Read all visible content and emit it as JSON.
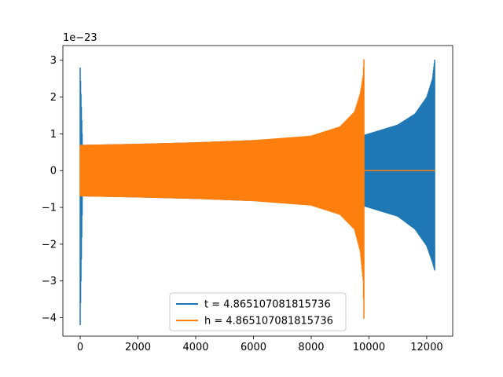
{
  "chart_data": {
    "type": "line",
    "title": "",
    "xlabel": "",
    "ylabel": "",
    "y_offset_label": "1e−23",
    "xlim": [
      -600,
      12900
    ],
    "ylim": [
      -4.5,
      3.4
    ],
    "x_ticks": [
      0,
      2000,
      4000,
      6000,
      8000,
      10000,
      12000
    ],
    "x_tick_labels": [
      "0",
      "2000",
      "4000",
      "6000",
      "8000",
      "10000",
      "12000"
    ],
    "y_ticks": [
      -4,
      -3,
      -2,
      -1,
      0,
      1,
      2,
      3
    ],
    "y_tick_labels": [
      "−4",
      "−3",
      "−2",
      "−1",
      "0",
      "1",
      "2",
      "3"
    ],
    "grid": false,
    "legend_position": "bottom-center",
    "series": [
      {
        "name": "t = 4.865107081815736",
        "color": "#1f77b4",
        "end": 12288,
        "envelope": [
          {
            "x": 0,
            "upper": 2.8,
            "lower": -4.2
          },
          {
            "x": 80,
            "upper": 0.7,
            "lower": -0.7
          },
          {
            "x": 2000,
            "upper": 0.73,
            "lower": -0.73
          },
          {
            "x": 4000,
            "upper": 0.77,
            "lower": -0.77
          },
          {
            "x": 6000,
            "upper": 0.83,
            "lower": -0.83
          },
          {
            "x": 8000,
            "upper": 0.92,
            "lower": -0.92
          },
          {
            "x": 9830,
            "upper": 0.97,
            "lower": -0.97
          },
          {
            "x": 11000,
            "upper": 1.25,
            "lower": -1.25
          },
          {
            "x": 11600,
            "upper": 1.55,
            "lower": -1.6
          },
          {
            "x": 12000,
            "upper": 2.0,
            "lower": -2.05
          },
          {
            "x": 12200,
            "upper": 2.5,
            "lower": -2.5
          },
          {
            "x": 12288,
            "upper": 3.1,
            "lower": -2.75
          }
        ]
      },
      {
        "name": "h = 4.865107081815736",
        "color": "#ff7f0e",
        "end": 9830,
        "flat_until": 12288,
        "envelope": [
          {
            "x": 0,
            "upper": 0.7,
            "lower": -0.7
          },
          {
            "x": 2000,
            "upper": 0.73,
            "lower": -0.73
          },
          {
            "x": 4000,
            "upper": 0.77,
            "lower": -0.77
          },
          {
            "x": 6000,
            "upper": 0.83,
            "lower": -0.83
          },
          {
            "x": 8000,
            "upper": 0.95,
            "lower": -0.95
          },
          {
            "x": 9000,
            "upper": 1.2,
            "lower": -1.2
          },
          {
            "x": 9500,
            "upper": 1.6,
            "lower": -1.6
          },
          {
            "x": 9700,
            "upper": 2.1,
            "lower": -2.2
          },
          {
            "x": 9800,
            "upper": 2.6,
            "lower": -3.0
          },
          {
            "x": 9830,
            "upper": 3.1,
            "lower": -4.2
          }
        ]
      }
    ]
  }
}
